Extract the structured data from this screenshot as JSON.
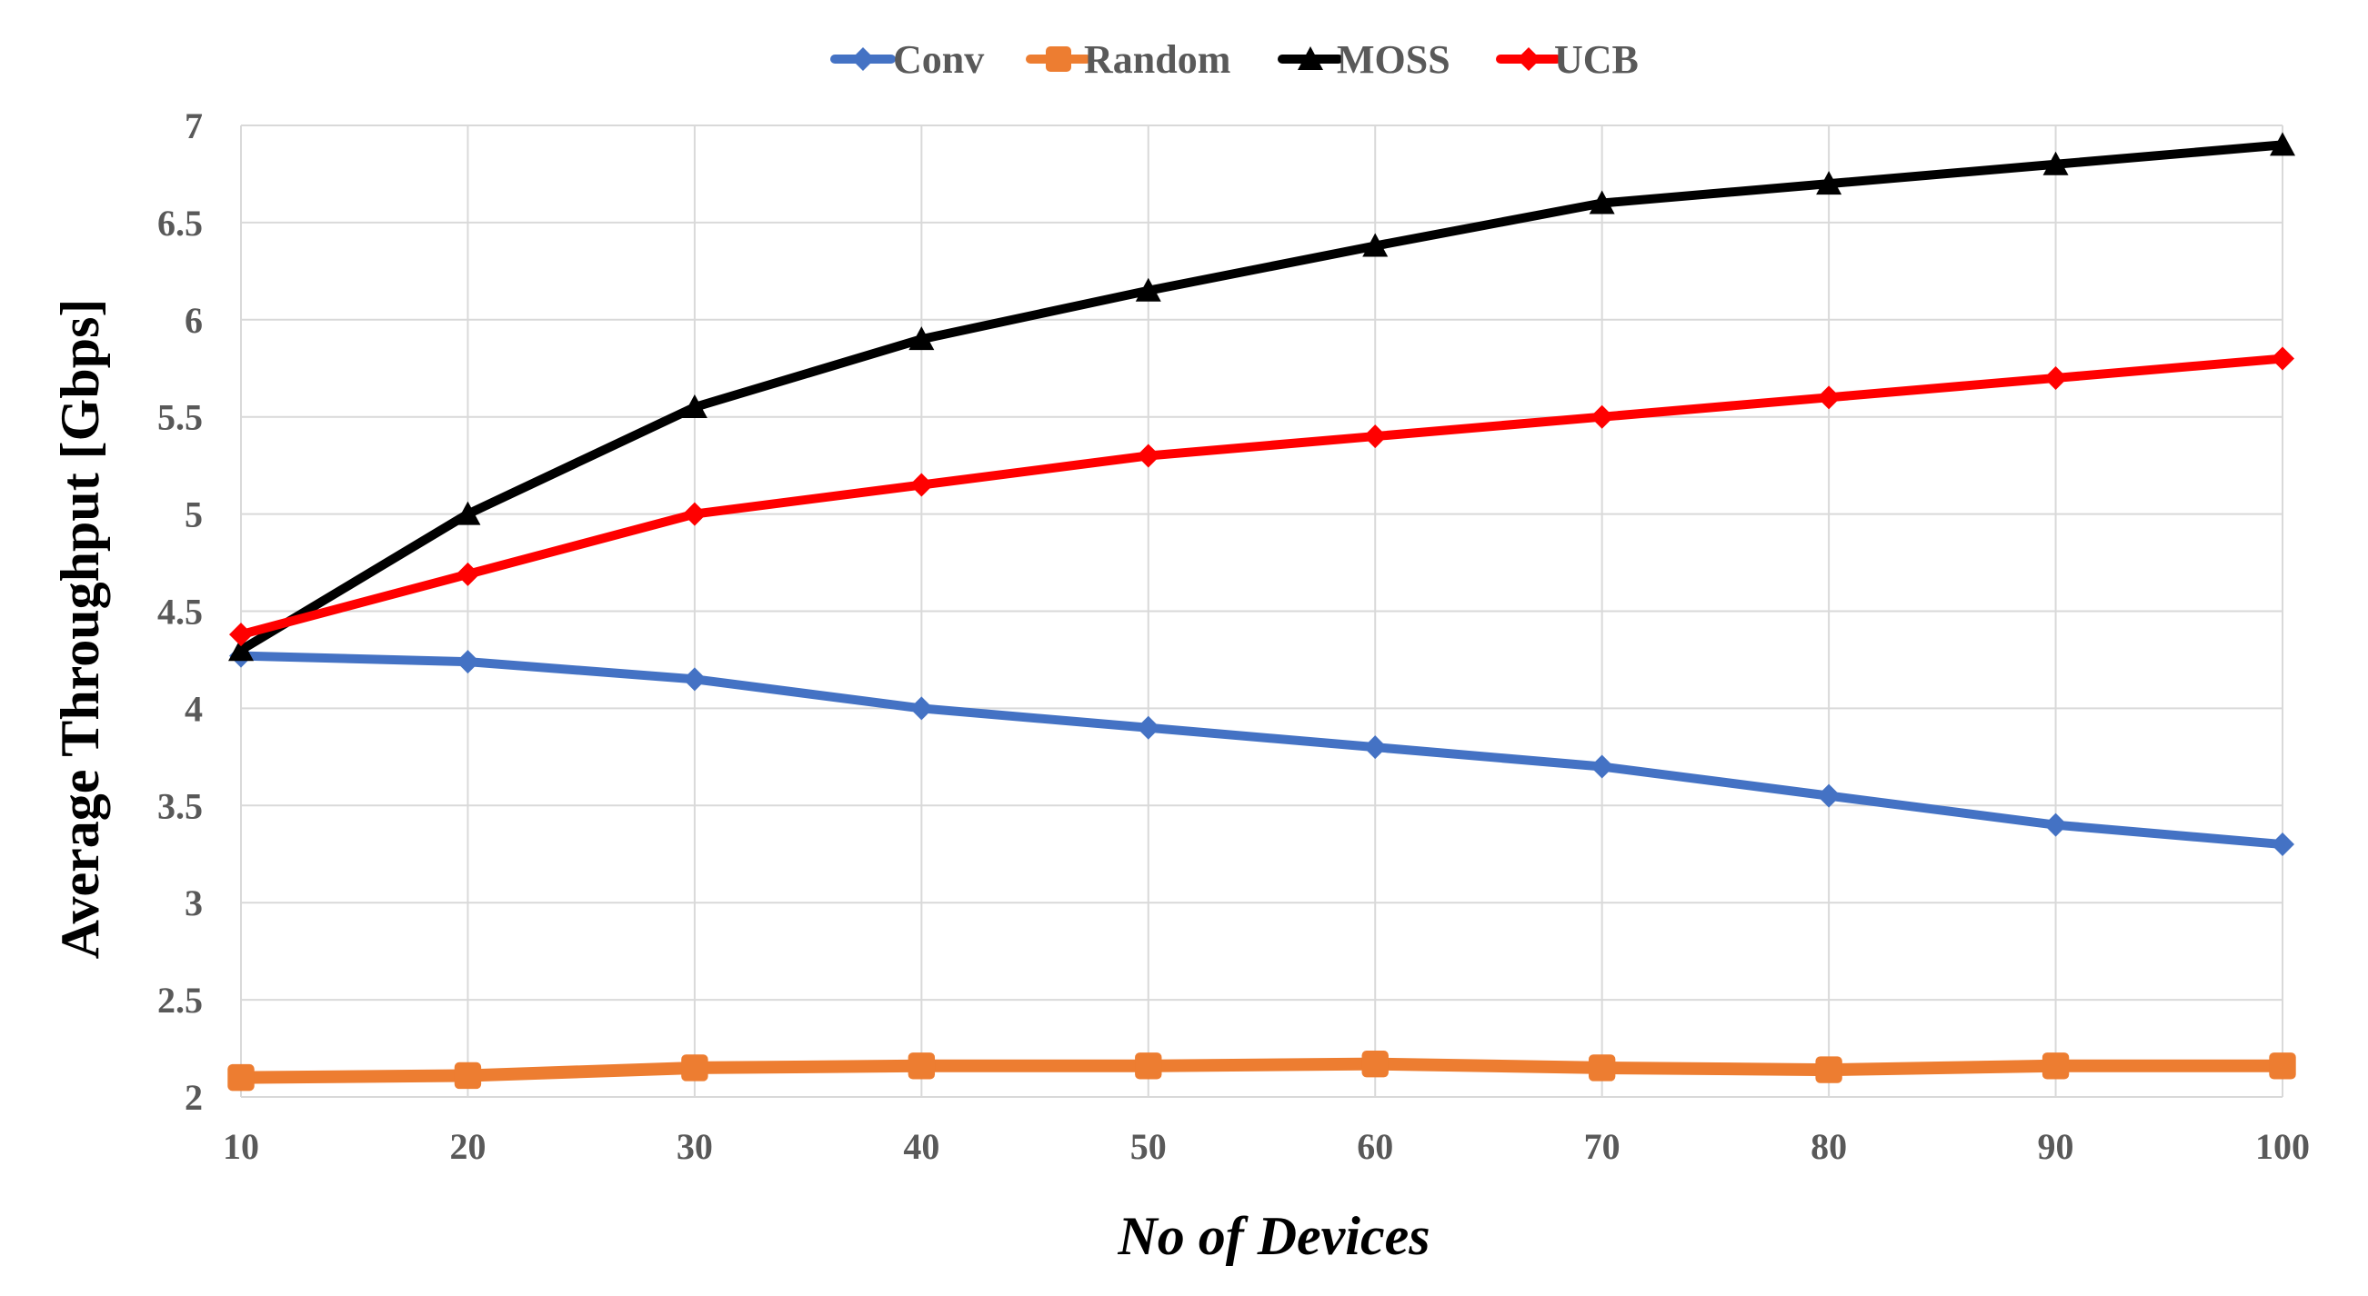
{
  "chart_data": {
    "type": "line",
    "title": "",
    "xlabel": "No of Devices",
    "ylabel": "Average Throughput [Gbps]",
    "x": [
      10,
      20,
      30,
      40,
      50,
      60,
      70,
      80,
      90,
      100
    ],
    "x_tick_labels": [
      "10",
      "20",
      "30",
      "40",
      "50",
      "60",
      "70",
      "80",
      "90",
      "100"
    ],
    "ylim": [
      2,
      7
    ],
    "y_ticks": [
      2,
      2.5,
      3,
      3.5,
      4,
      4.5,
      5,
      5.5,
      6,
      6.5,
      7
    ],
    "y_tick_labels": [
      "2",
      "2.5",
      "3",
      "3.5",
      "4",
      "4.5",
      "5",
      "5.5",
      "6",
      "6.5",
      "7"
    ],
    "grid": true,
    "legend_position": "top-center",
    "series": [
      {
        "name": "Conv",
        "color": "#4472C4",
        "marker": "diamond",
        "values": [
          4.27,
          4.24,
          4.15,
          4.0,
          3.9,
          3.8,
          3.7,
          3.55,
          3.4,
          3.3
        ]
      },
      {
        "name": "Random",
        "color": "#ED7D31",
        "marker": "square",
        "values": [
          2.1,
          2.11,
          2.15,
          2.16,
          2.16,
          2.17,
          2.15,
          2.14,
          2.16,
          2.16
        ]
      },
      {
        "name": "MOSS",
        "color": "#000000",
        "marker": "triangle",
        "values": [
          4.3,
          5.0,
          5.55,
          5.9,
          6.15,
          6.38,
          6.6,
          6.7,
          6.8,
          6.9
        ]
      },
      {
        "name": "UCB",
        "color": "#FF0000",
        "marker": "diamond",
        "values": [
          4.38,
          4.69,
          5.0,
          5.15,
          5.3,
          5.4,
          5.5,
          5.6,
          5.7,
          5.8
        ]
      }
    ]
  }
}
